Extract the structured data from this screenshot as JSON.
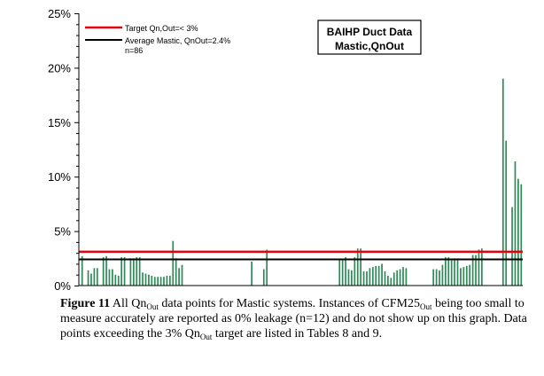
{
  "chart_data": {
    "type": "bar",
    "ylim": [
      0,
      25
    ],
    "yticks": [
      "0%",
      "5%",
      "10%",
      "15%",
      "20%",
      "25%"
    ],
    "values": [
      2.7,
      0,
      1.4,
      1.1,
      1.6,
      1.6,
      0,
      2.6,
      2.7,
      1.5,
      1.5,
      1.0,
      0.9,
      2.6,
      2.6,
      0,
      2.5,
      2.5,
      2.6,
      2.6,
      1.2,
      1.1,
      1.0,
      0.9,
      0.8,
      0.8,
      0.8,
      0.8,
      0.9,
      0.9,
      4.1,
      2.5,
      1.6,
      1.9,
      0,
      0,
      0,
      0,
      0,
      0,
      0,
      0,
      0,
      0,
      0,
      0,
      0,
      0,
      0,
      0,
      0,
      0,
      0,
      0,
      0,
      0,
      2.2,
      0,
      0,
      0,
      1.5,
      3.3,
      0,
      0,
      0,
      0,
      0,
      0,
      0,
      0,
      0,
      0,
      0,
      0,
      0,
      0,
      0,
      0,
      0,
      0,
      0,
      0,
      0,
      0,
      0,
      2.4,
      2.4,
      2.6,
      1.5,
      1.4,
      2.6,
      3.4,
      3.4,
      1.3,
      1.3,
      1.6,
      1.7,
      1.8,
      1.8,
      2.0,
      1.3,
      0.9,
      0.7,
      1.2,
      1.4,
      1.5,
      1.7,
      1.6,
      0,
      0,
      0,
      0,
      0,
      0,
      0,
      0,
      1.5,
      1.5,
      1.4,
      1.9,
      2.6,
      2.6,
      2.4,
      2.5,
      2.5,
      1.6,
      1.7,
      1.8,
      1.9,
      2.8,
      2.8,
      3.3,
      3.4,
      0,
      0,
      0,
      0,
      0,
      0,
      19.0,
      13.3,
      0,
      7.2,
      11.4,
      9.8,
      9.3
    ],
    "series": [
      {
        "name": "Target Qn,Out=< 3%",
        "value": 3.1,
        "color": "#e8000b"
      },
      {
        "name": "Average Mastic, QnOut=2.4%",
        "value": 2.4,
        "color": "#000000"
      }
    ],
    "legend_extra": "n=86",
    "bar_color": "#2e8b57",
    "title_lines": [
      "BAIHP Duct Data",
      "Mastic,QnOut"
    ]
  },
  "caption": {
    "figure_label": "Figure 11",
    "t1": " All Qn",
    "s1": "Out",
    "t2": " data points for Mastic systems. Instances of CFM25",
    "s2": "Out",
    "t3": " being too small to measure accurately are reported as 0% leakage (n=12) and do not show up on this graph. Data points exceeding the 3% Qn",
    "s3": "Out",
    "t4": " target are listed in Tables 8 and 9."
  }
}
